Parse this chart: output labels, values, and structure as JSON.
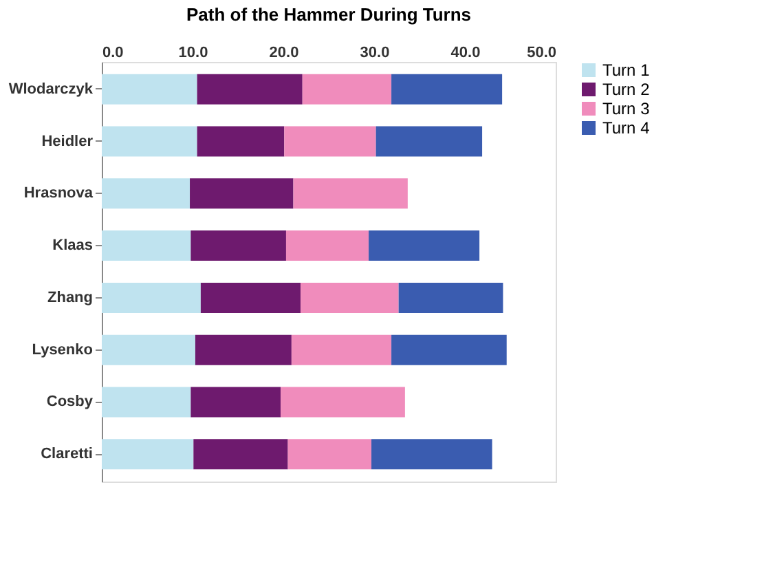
{
  "chart_data": {
    "type": "bar",
    "orientation": "horizontal",
    "stacked": true,
    "title": "Path of the Hammer During Turns",
    "categories": [
      "Wlodarczyk",
      "Heidler",
      "Hrasnova",
      "Klaas",
      "Zhang",
      "Lysenko",
      "Cosby",
      "Claretti"
    ],
    "series": [
      {
        "name": "Turn 1",
        "color": "#bfe3ef",
        "values": [
          10.5,
          10.5,
          9.7,
          9.8,
          10.9,
          10.3,
          9.8,
          10.1
        ]
      },
      {
        "name": "Turn 2",
        "color": "#6e1a6e",
        "values": [
          11.6,
          9.6,
          11.4,
          10.5,
          11.0,
          10.6,
          9.9,
          10.4
        ]
      },
      {
        "name": "Turn 3",
        "color": "#f08cbc",
        "values": [
          9.8,
          10.1,
          12.6,
          9.1,
          10.8,
          11.0,
          13.7,
          9.2
        ]
      },
      {
        "name": "Turn 4",
        "color": "#3a5cb0",
        "values": [
          12.2,
          11.7,
          null,
          12.2,
          11.5,
          12.7,
          null,
          13.3
        ]
      }
    ],
    "xlim": [
      0,
      50
    ],
    "xticks": [
      {
        "value": 0,
        "label": "0.0"
      },
      {
        "value": 10,
        "label": "10.0"
      },
      {
        "value": 20,
        "label": "20.0"
      },
      {
        "value": 30,
        "label": "30.0"
      },
      {
        "value": 40,
        "label": "40.0"
      },
      {
        "value": 50,
        "label": "50.0"
      }
    ],
    "grid": false,
    "legend": "right"
  }
}
